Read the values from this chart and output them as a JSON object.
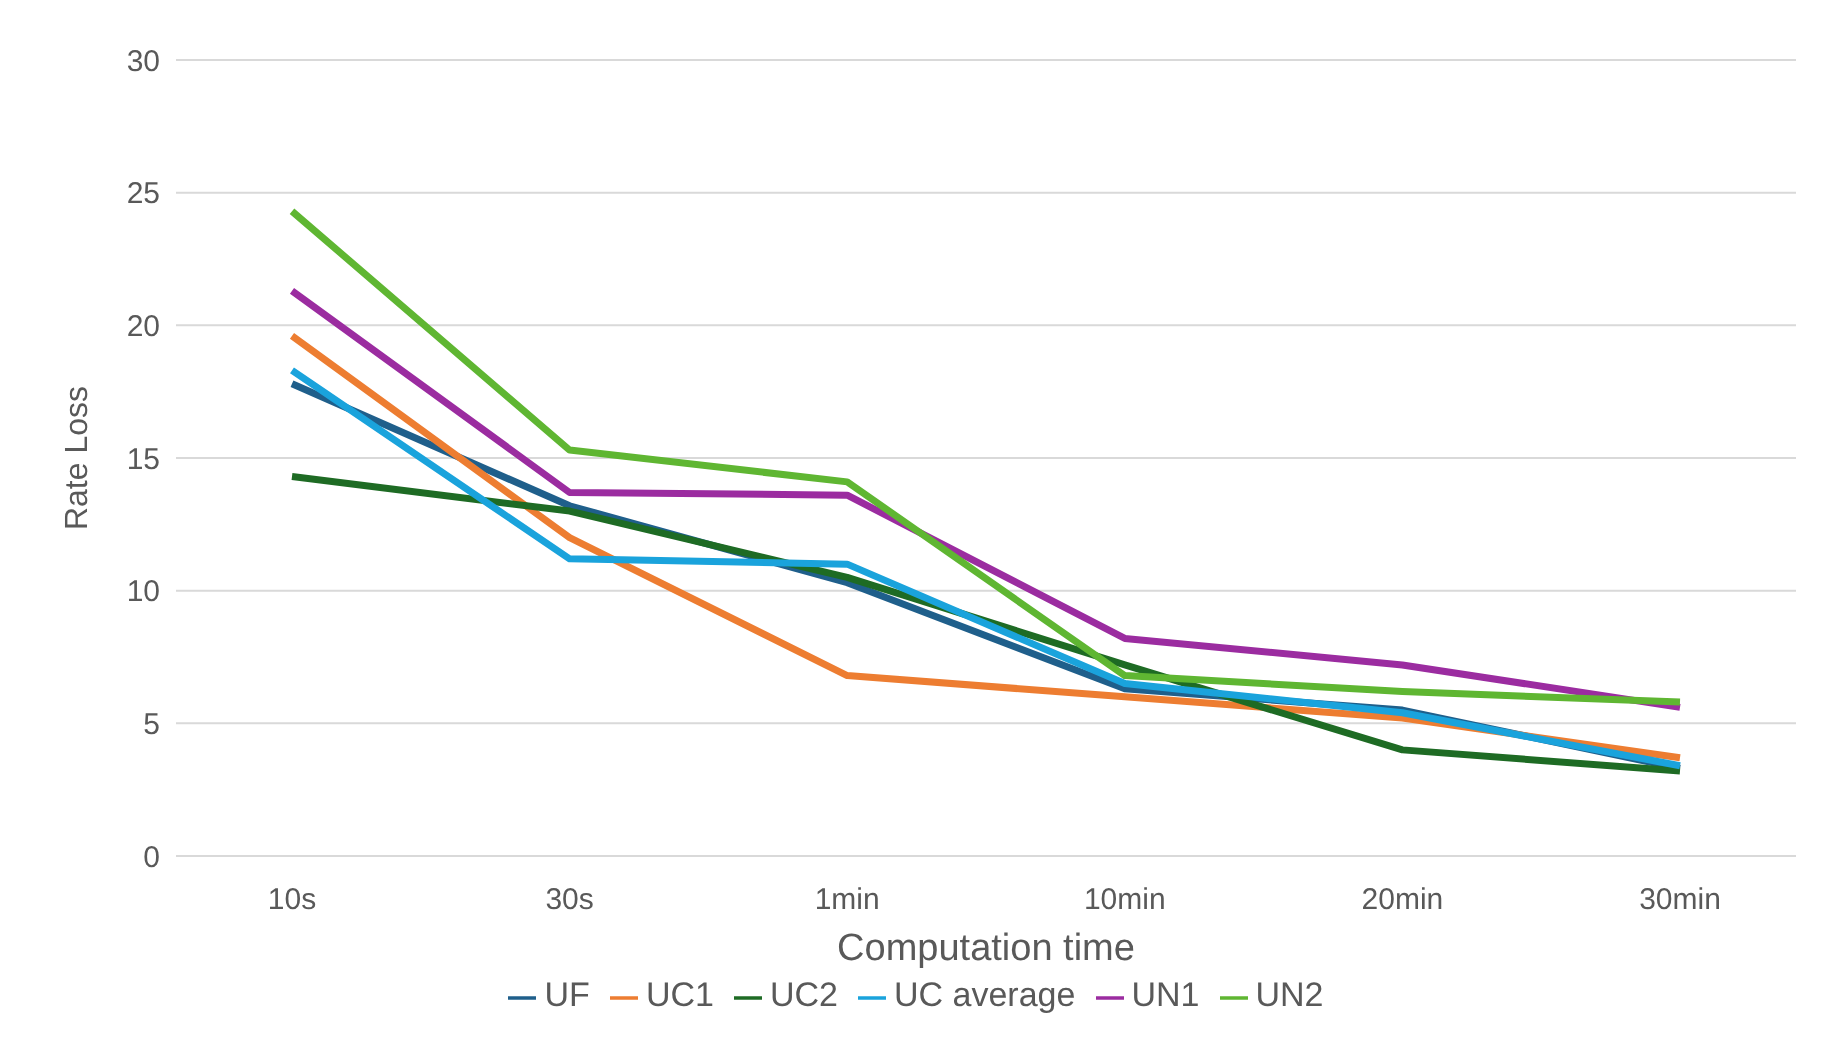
{
  "chart_data": {
    "type": "line",
    "xlabel": "Computation time",
    "ylabel": "Rate Loss",
    "categories": [
      "10s",
      "30s",
      "1min",
      "10min",
      "20min",
      "30min"
    ],
    "series": [
      {
        "name": "UF",
        "color": "#1f5f8b",
        "values": [
          17.8,
          13.2,
          10.3,
          6.3,
          5.5,
          3.3
        ]
      },
      {
        "name": "UC1",
        "color": "#ed7d31",
        "values": [
          19.6,
          12.0,
          6.8,
          6.0,
          5.2,
          3.7
        ]
      },
      {
        "name": "UC2",
        "color": "#1e6b24",
        "values": [
          14.3,
          13.0,
          10.5,
          7.2,
          4.0,
          3.2
        ]
      },
      {
        "name": "UC average",
        "color": "#1aa3dc",
        "values": [
          18.3,
          11.2,
          11.0,
          6.5,
          5.4,
          3.4
        ]
      },
      {
        "name": "UN1",
        "color": "#9b2ca0",
        "values": [
          21.3,
          13.7,
          13.6,
          8.2,
          7.2,
          5.6
        ]
      },
      {
        "name": "UN2",
        "color": "#5fb632",
        "values": [
          24.3,
          15.3,
          14.1,
          6.8,
          6.2,
          5.8
        ]
      }
    ],
    "ylim": [
      0,
      30
    ],
    "yticks": [
      0,
      5,
      10,
      15,
      20,
      25,
      30
    ],
    "grid": "y",
    "legend": "bottom",
    "marker": "none",
    "line_style": "solid"
  }
}
